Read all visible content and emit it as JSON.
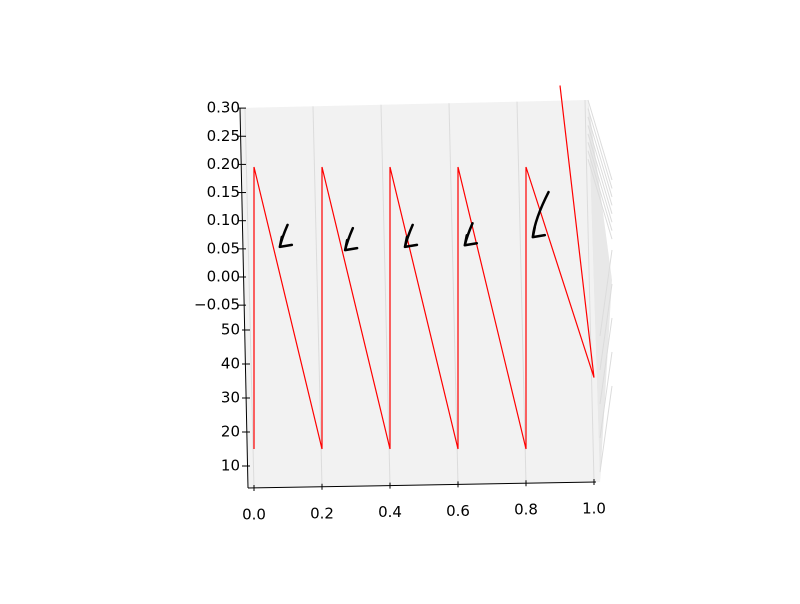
{
  "chart_data": {
    "type": "line3d",
    "xlim": [
      0,
      1
    ],
    "ylim": [
      5,
      55
    ],
    "zlim": [
      -0.05,
      0.3
    ],
    "xticks": [
      {
        "value": 0,
        "label": "0.0"
      },
      {
        "value": 0.2,
        "label": "0.2"
      },
      {
        "value": 0.4,
        "label": "0.4"
      },
      {
        "value": 0.6,
        "label": "0.6"
      },
      {
        "value": 0.8,
        "label": "0.8"
      },
      {
        "value": 1,
        "label": "1.0"
      }
    ],
    "yticks": [
      10,
      20,
      30,
      40,
      50
    ],
    "zticks": [
      {
        "value": 0.3,
        "label": "0.30"
      },
      {
        "value": 0.25,
        "label": "0.25"
      },
      {
        "value": 0.2,
        "label": "0.20"
      },
      {
        "value": 0.15,
        "label": "0.15"
      },
      {
        "value": 0.1,
        "label": "0.10"
      },
      {
        "value": 0.05,
        "label": "0.05"
      },
      {
        "value": 0,
        "label": "0.00"
      },
      {
        "value": -0.05,
        "label": "−0.05"
      }
    ],
    "grid": true,
    "series": [
      {
        "color": "#ff0000",
        "x": [
          0,
          0,
          0.2,
          0.2,
          0.4,
          0.4,
          0.6,
          0.6,
          0.8,
          0.8,
          1.0,
          0.9
        ],
        "y": [
          15,
          50,
          15,
          50,
          15,
          50,
          15,
          50,
          15,
          50,
          36,
          50
        ],
        "z": [
          0,
          0.2,
          0,
          0.2,
          0,
          0.2,
          0,
          0.2,
          0,
          0.2,
          0,
          0.3
        ]
      },
      {
        "color": "#000000",
        "x": [
          0.076,
          0.268,
          0.444,
          0.62,
          0.82
        ],
        "y": [
          50,
          50,
          50,
          50,
          50
        ],
        "z": [
          0.102,
          0.098,
          0.102,
          0.104,
          0.114
        ]
      }
    ]
  }
}
